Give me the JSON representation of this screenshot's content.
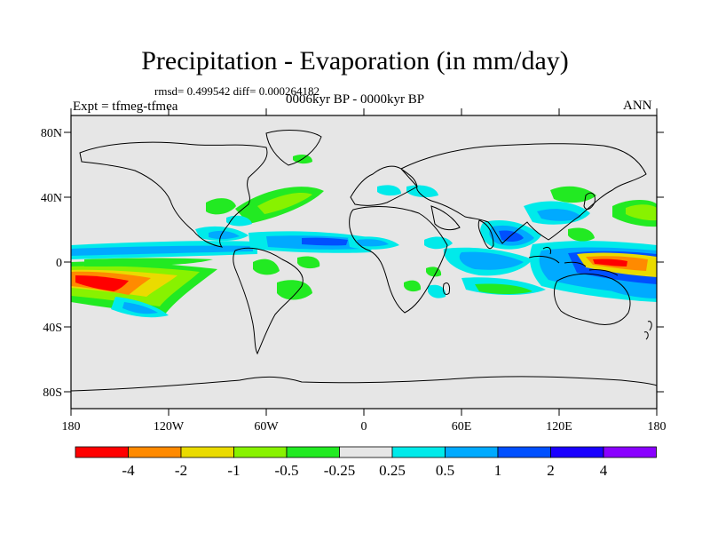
{
  "title": "Precipitation - Evaporation (in mm/day)",
  "stats_line": "rmsd= 0.499542  diff= 0.000264182",
  "period_line": "0006kyr BP - 0000kyr BP",
  "experiment_line": "Expt = tfmeg-tfmea",
  "season_label": "ANN",
  "lat_ticks": [
    "80N",
    "40N",
    "0",
    "40S",
    "80S"
  ],
  "lon_ticks": [
    "180",
    "120W",
    "60W",
    "0",
    "60E",
    "120E",
    "180"
  ],
  "colorbar": {
    "labels": [
      "-4",
      "-2",
      "-1",
      "-0.5",
      "-0.25",
      "0.25",
      "0.5",
      "1",
      "2",
      "4"
    ],
    "colors": [
      "#ff0000",
      "#ff8a00",
      "#eadb00",
      "#88f200",
      "#22ea22",
      "#e6e6e6",
      "#00eaea",
      "#00aaff",
      "#0050ff",
      "#1a00ff",
      "#8a00ff"
    ]
  },
  "colors": {
    "ocean": "#e6e6e6",
    "coast": "#000000"
  }
}
